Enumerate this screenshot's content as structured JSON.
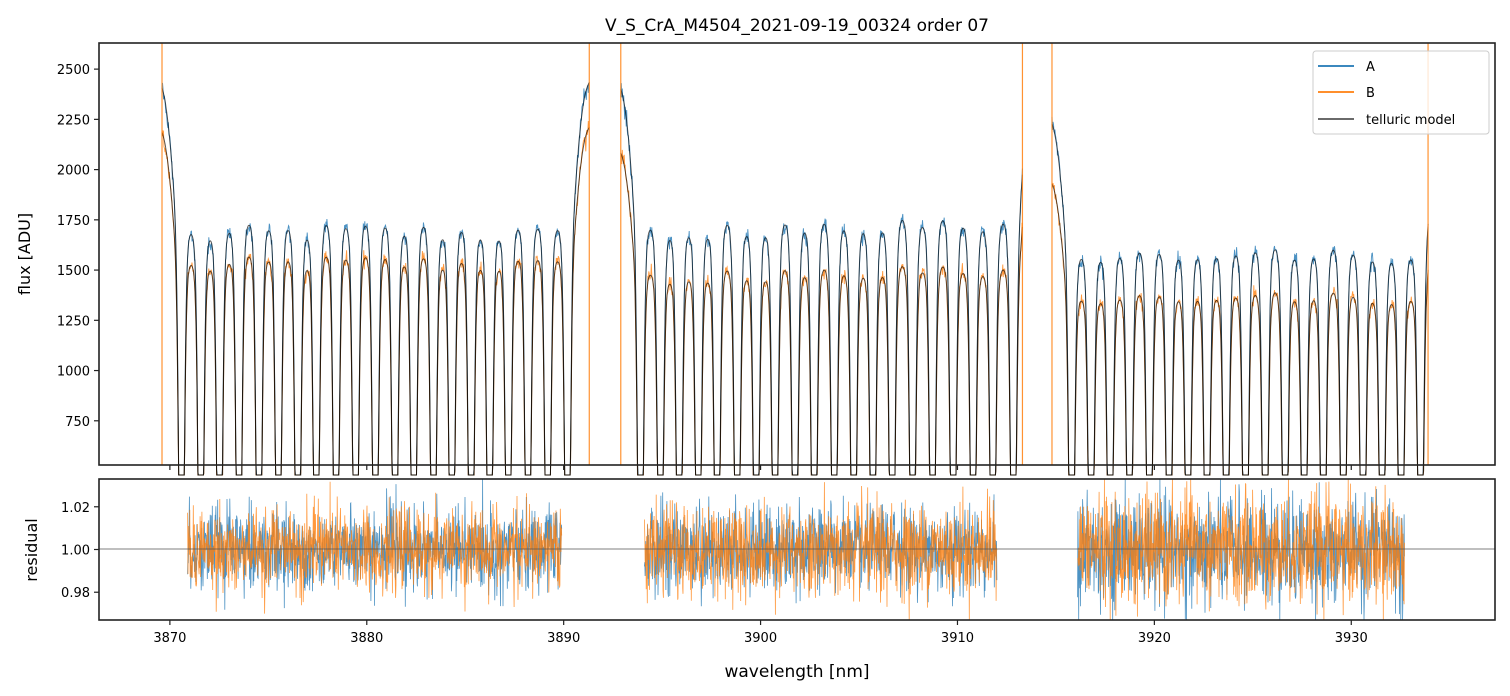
{
  "chart_data": [
    {
      "panel": "flux",
      "type": "line",
      "title": "V_S_CrA_M4504_2021-09-19_00324  order 07",
      "xlabel": "",
      "ylabel": "flux [ADU]",
      "xlim": [
        3866.4,
        3937.3
      ],
      "ylim": [
        530,
        2630
      ],
      "yticks": [
        750,
        1000,
        1250,
        1500,
        1750,
        2000,
        2250,
        2500
      ],
      "ytick_labels": [
        "750",
        "1000",
        "1250",
        "1500",
        "1750",
        "2000",
        "2250",
        "2500"
      ],
      "xticks": [
        3870,
        3880,
        3890,
        3900,
        3910,
        3920,
        3930
      ],
      "grid": false,
      "legend": {
        "placement": "top-right",
        "entries": [
          "A",
          "B",
          "telluric model"
        ]
      },
      "segments": [
        {
          "x_range": [
            3869.6,
            3891.3
          ],
          "A_continuum": 2510,
          "B_continuum": 2280,
          "line_spacing_nm": 0.97
        },
        {
          "x_range": [
            3892.9,
            3913.3
          ],
          "A_continuum": 2500,
          "B_continuum": 2170,
          "line_spacing_nm": 1.0
        },
        {
          "x_range": [
            3914.8,
            3933.9
          ],
          "A_continuum": 2320,
          "B_continuum": 2010,
          "line_spacing_nm": 1.0
        }
      ],
      "series": [
        {
          "name": "A",
          "color": "#1f77b4",
          "description": "continuum ~2500 ADU with periodic deep absorption lines"
        },
        {
          "name": "B",
          "color": "#ff7f0e",
          "description": "continuum ~2250/2150/2000 ADU with same absorption lines"
        },
        {
          "name": "telluric model",
          "color": "#000000",
          "description": "smooth model tracing A and B"
        }
      ]
    },
    {
      "panel": "residual",
      "type": "line",
      "xlabel": "wavelength [nm]",
      "ylabel": "residual",
      "xlim": [
        3866.4,
        3937.3
      ],
      "ylim": [
        0.967,
        1.033
      ],
      "yticks": [
        0.98,
        1.0,
        1.02
      ],
      "ytick_labels": [
        "0.98",
        "1.00",
        "1.02"
      ],
      "xticks": [
        3870,
        3880,
        3890,
        3900,
        3910,
        3920,
        3930
      ],
      "xtick_labels": [
        "3870",
        "3880",
        "3890",
        "3900",
        "3910",
        "3920",
        "3930"
      ],
      "reference_line": 1.0,
      "segments": [
        {
          "x_range": [
            3870.9,
            3889.9
          ],
          "scatter": 0.012
        },
        {
          "x_range": [
            3894.1,
            3912.0
          ],
          "scatter": 0.013
        },
        {
          "x_range": [
            3916.1,
            3932.7
          ],
          "scatter": 0.016
        }
      ],
      "series": [
        {
          "name": "A",
          "color": "#1f77b4"
        },
        {
          "name": "B",
          "color": "#ff7f0e"
        }
      ]
    }
  ]
}
